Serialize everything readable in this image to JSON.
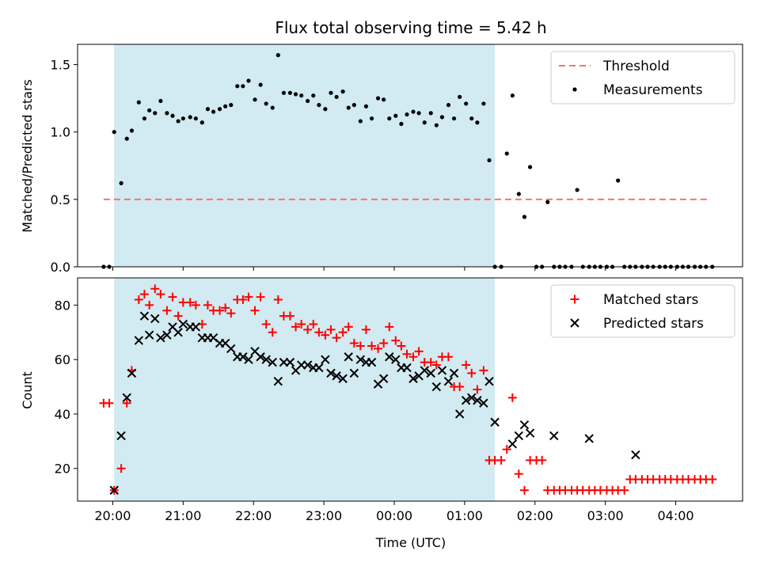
{
  "title": "Flux total observing time = 5.42 h",
  "colors": {
    "threshold": "#ff7070",
    "measurement": "#000000",
    "matched": "#ff0000",
    "predicted": "#000000",
    "shade": "#add8e6"
  },
  "chart_data": [
    {
      "type": "scatter",
      "ylabel": "Matched/Predicted stars",
      "xlabel": "",
      "xlim_hours": [
        19.5,
        28.95
      ],
      "ylim": [
        0,
        1.65
      ],
      "x_ticks": [
        "20:00",
        "21:00",
        "22:00",
        "23:00",
        "00:00",
        "01:00",
        "02:00",
        "03:00",
        "04:00"
      ],
      "x_tick_hours": [
        20,
        21,
        22,
        23,
        24,
        25,
        26,
        27,
        28
      ],
      "y_ticks": [
        0.0,
        0.5,
        1.0,
        1.5
      ],
      "y_tick_labels": [
        "0.0",
        "0.5",
        "1.0",
        "1.5"
      ],
      "shaded_interval_hours": [
        20.02,
        25.43
      ],
      "legend": {
        "placement": "top-right",
        "entries": [
          {
            "label": "Threshold",
            "marker": "dashed-line"
          },
          {
            "label": "Measurements",
            "marker": "dot"
          }
        ]
      },
      "series": [
        {
          "name": "Threshold",
          "kind": "line",
          "x_hours": [
            19.87,
            28.5
          ],
          "y": [
            0.5,
            0.5
          ]
        },
        {
          "name": "Measurements",
          "kind": "dots",
          "x_hours": [
            19.87,
            19.95,
            20.02,
            20.12,
            20.2,
            20.27,
            20.37,
            20.45,
            20.52,
            20.6,
            20.68,
            20.77,
            20.85,
            20.93,
            21.0,
            21.1,
            21.18,
            21.27,
            21.35,
            21.43,
            21.52,
            21.6,
            21.68,
            21.77,
            21.85,
            21.93,
            22.02,
            22.1,
            22.18,
            22.27,
            22.35,
            22.43,
            22.52,
            22.6,
            22.68,
            22.77,
            22.85,
            22.93,
            23.02,
            23.1,
            23.18,
            23.27,
            23.35,
            23.43,
            23.52,
            23.6,
            23.68,
            23.77,
            23.85,
            23.93,
            24.02,
            24.1,
            24.18,
            24.27,
            24.35,
            24.43,
            24.52,
            24.6,
            24.68,
            24.77,
            24.85,
            24.93,
            25.02,
            25.1,
            25.18,
            25.27,
            25.35,
            25.43,
            25.52,
            25.6,
            25.68,
            25.77,
            25.85,
            25.93,
            26.02,
            26.1,
            26.18,
            26.27,
            26.35,
            26.43,
            26.52,
            26.6,
            26.68,
            26.77,
            26.85,
            26.93,
            27.02,
            27.1,
            27.18,
            27.27,
            27.35,
            27.43,
            27.52,
            27.6,
            27.68,
            27.77,
            27.85,
            27.93,
            28.02,
            28.1,
            28.18,
            28.27,
            28.35,
            28.43,
            28.52
          ],
          "y": [
            0.0,
            0.0,
            1.0,
            0.62,
            0.95,
            1.01,
            1.22,
            1.1,
            1.16,
            1.14,
            1.23,
            1.14,
            1.12,
            1.08,
            1.1,
            1.11,
            1.1,
            1.07,
            1.17,
            1.15,
            1.17,
            1.19,
            1.2,
            1.34,
            1.34,
            1.38,
            1.24,
            1.35,
            1.21,
            1.18,
            1.57,
            1.29,
            1.29,
            1.28,
            1.27,
            1.23,
            1.27,
            1.2,
            1.17,
            1.29,
            1.26,
            1.3,
            1.18,
            1.2,
            1.08,
            1.19,
            1.1,
            1.25,
            1.24,
            1.1,
            1.12,
            1.06,
            1.13,
            1.15,
            1.14,
            1.07,
            1.14,
            1.05,
            1.11,
            1.2,
            1.1,
            1.26,
            1.21,
            1.1,
            1.07,
            1.21,
            0.79,
            0.0,
            0.0,
            0.84,
            1.27,
            0.54,
            0.37,
            0.74,
            0.0,
            0.0,
            0.48,
            0.0,
            0.0,
            0.0,
            0.0,
            0.57,
            0.0,
            0.0,
            0.0,
            0.0,
            0.0,
            0.0,
            0.64,
            0.0,
            0.0,
            0.0,
            0.0,
            0.0,
            0.0,
            0.0,
            0.0,
            0.0,
            0.0,
            0.0,
            0.0,
            0.0,
            0.0,
            0.0,
            0.0
          ]
        }
      ]
    },
    {
      "type": "scatter",
      "ylabel": "Count",
      "xlabel": "Time (UTC)",
      "xlim_hours": [
        19.5,
        28.95
      ],
      "ylim": [
        8,
        90
      ],
      "x_ticks": [
        "20:00",
        "21:00",
        "22:00",
        "23:00",
        "00:00",
        "01:00",
        "02:00",
        "03:00",
        "04:00"
      ],
      "x_tick_hours": [
        20,
        21,
        22,
        23,
        24,
        25,
        26,
        27,
        28
      ],
      "y_ticks": [
        20,
        40,
        60,
        80
      ],
      "y_tick_labels": [
        "20",
        "40",
        "60",
        "80"
      ],
      "shaded_interval_hours": [
        20.02,
        25.43
      ],
      "legend": {
        "placement": "top-right",
        "entries": [
          {
            "label": "Matched stars",
            "marker": "plus"
          },
          {
            "label": "Predicted stars",
            "marker": "cross"
          }
        ]
      },
      "series": [
        {
          "name": "Matched stars",
          "kind": "plus",
          "x_hours": [
            19.87,
            19.95,
            20.02,
            20.12,
            20.2,
            20.27,
            20.37,
            20.45,
            20.52,
            20.6,
            20.68,
            20.77,
            20.85,
            20.93,
            21.0,
            21.1,
            21.18,
            21.27,
            21.35,
            21.43,
            21.52,
            21.6,
            21.68,
            21.77,
            21.85,
            21.93,
            22.02,
            22.1,
            22.18,
            22.27,
            22.35,
            22.43,
            22.52,
            22.6,
            22.68,
            22.77,
            22.85,
            22.93,
            23.02,
            23.1,
            23.18,
            23.27,
            23.35,
            23.43,
            23.52,
            23.6,
            23.68,
            23.77,
            23.85,
            23.93,
            24.02,
            24.1,
            24.18,
            24.27,
            24.35,
            24.43,
            24.52,
            24.6,
            24.68,
            24.77,
            24.85,
            24.93,
            25.02,
            25.1,
            25.18,
            25.27,
            25.35,
            25.43,
            25.52,
            25.6,
            25.68,
            25.77,
            25.85,
            25.93,
            26.02,
            26.1,
            26.18,
            26.27,
            26.35,
            26.43,
            26.52,
            26.6,
            26.68,
            26.77,
            26.85,
            26.93,
            27.02,
            27.1,
            27.18,
            27.27,
            27.35,
            27.43,
            27.52,
            27.6,
            27.68,
            27.77,
            27.85,
            27.93,
            28.02,
            28.1,
            28.18,
            28.27,
            28.35,
            28.43,
            28.52
          ],
          "y": [
            44,
            44,
            12,
            20,
            44,
            56,
            82,
            84,
            80,
            86,
            84,
            78,
            83,
            76,
            81,
            81,
            80,
            73,
            80,
            78,
            78,
            79,
            77,
            82,
            82,
            83,
            78,
            83,
            73,
            70,
            82,
            76,
            76,
            72,
            73,
            71,
            73,
            70,
            69,
            71,
            68,
            70,
            72,
            66,
            65,
            71,
            65,
            64,
            66,
            72,
            67,
            65,
            62,
            61,
            63,
            59,
            59,
            58,
            61,
            61,
            50,
            50,
            58,
            55,
            49,
            56,
            23,
            23,
            23,
            27,
            46,
            18,
            12,
            23,
            23,
            23,
            12,
            12,
            12,
            12,
            12,
            12,
            12,
            12,
            12,
            12,
            12,
            12,
            12,
            12,
            16,
            16,
            16,
            16,
            16,
            16,
            16,
            16,
            16,
            16,
            16,
            16,
            16,
            16,
            16
          ]
        },
        {
          "name": "Predicted stars",
          "kind": "cross",
          "x_hours": [
            20.02,
            20.12,
            20.2,
            20.27,
            20.37,
            20.45,
            20.52,
            20.6,
            20.68,
            20.77,
            20.85,
            20.93,
            21.0,
            21.1,
            21.18,
            21.27,
            21.35,
            21.43,
            21.52,
            21.6,
            21.68,
            21.77,
            21.85,
            21.93,
            22.02,
            22.1,
            22.18,
            22.27,
            22.35,
            22.43,
            22.52,
            22.6,
            22.68,
            22.77,
            22.85,
            22.93,
            23.02,
            23.1,
            23.18,
            23.27,
            23.35,
            23.43,
            23.52,
            23.6,
            23.68,
            23.77,
            23.85,
            23.93,
            24.02,
            24.1,
            24.18,
            24.27,
            24.35,
            24.43,
            24.52,
            24.6,
            24.68,
            24.77,
            24.85,
            24.93,
            25.02,
            25.1,
            25.18,
            25.27,
            25.35,
            25.43,
            25.68,
            25.77,
            25.85,
            25.93,
            26.27,
            26.77,
            27.43
          ],
          "y": [
            12,
            32,
            46,
            55,
            67,
            76,
            69,
            75,
            68,
            69,
            72,
            70,
            73,
            72,
            72,
            68,
            68,
            68,
            66,
            66,
            64,
            61,
            61,
            60,
            63,
            61,
            60,
            59,
            52,
            59,
            59,
            56,
            58,
            58,
            57,
            57,
            60,
            55,
            54,
            53,
            61,
            55,
            60,
            59,
            59,
            51,
            53,
            61,
            60,
            57,
            57,
            53,
            54,
            56,
            55,
            50,
            56,
            52,
            55,
            40,
            45,
            46,
            45,
            44,
            52,
            37,
            29,
            32,
            36,
            33,
            32,
            31,
            25
          ]
        }
      ]
    }
  ]
}
